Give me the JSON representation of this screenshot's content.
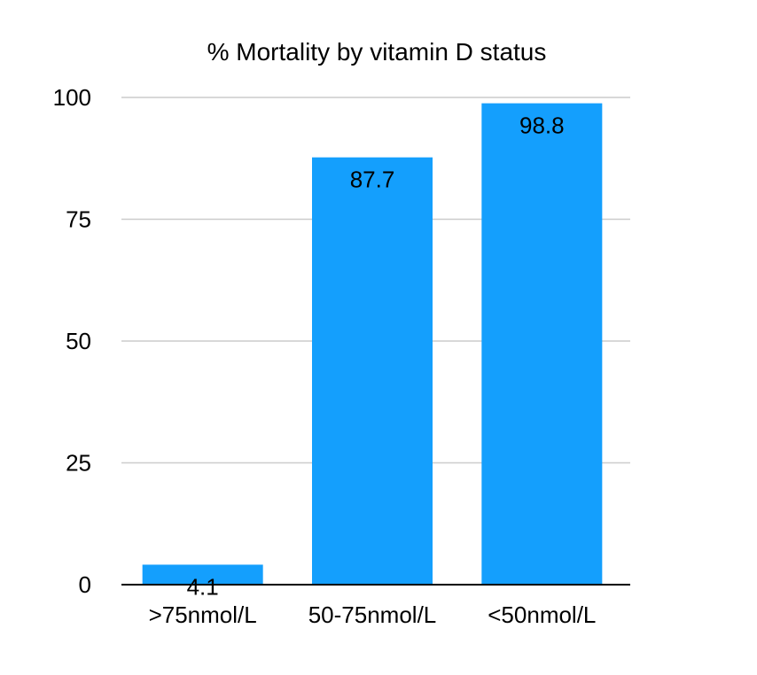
{
  "chart_data": {
    "type": "bar",
    "title": "% Mortality by vitamin D status",
    "xlabel": "",
    "ylabel": "",
    "categories": [
      ">75nmol/L",
      "50-75nmol/L",
      "<50nmol/L"
    ],
    "values": [
      4.1,
      87.7,
      98.8
    ],
    "data_labels": [
      "4.1",
      "87.7",
      "98.8"
    ],
    "ylim": [
      0,
      100
    ],
    "yticks": [
      0,
      25,
      50,
      75,
      100
    ],
    "grid": true,
    "legend": "none",
    "bar_color": "#149ffd"
  }
}
